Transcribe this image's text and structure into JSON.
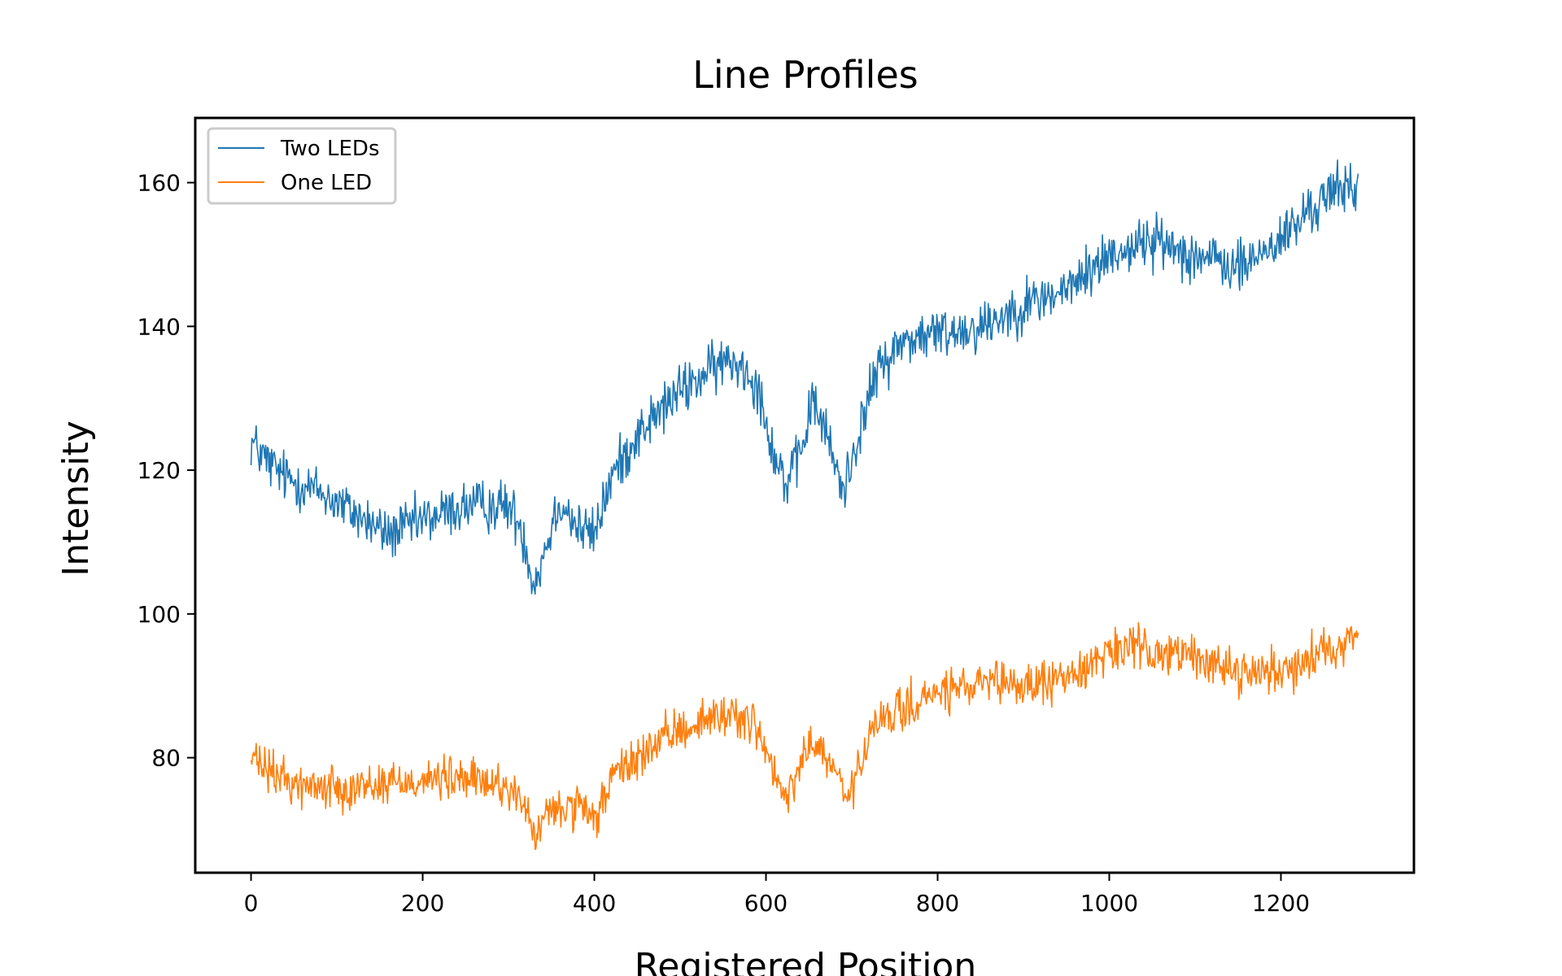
{
  "chart_data": {
    "type": "line",
    "title": "Line Profiles",
    "xlabel": "Registered Position",
    "ylabel": "Intensity",
    "xlim": [
      -65,
      1355
    ],
    "ylim": [
      64,
      169
    ],
    "xticks": [
      0,
      200,
      400,
      600,
      800,
      1000,
      1200
    ],
    "yticks": [
      80,
      100,
      120,
      140,
      160
    ],
    "xtick_labels": [
      "0",
      "200",
      "400",
      "600",
      "800",
      "1000",
      "1200"
    ],
    "ytick_labels": [
      "80",
      "100",
      "120",
      "140",
      "160"
    ],
    "legend_position": "top-left",
    "series": [
      {
        "name": "Two LEDs",
        "color": "#1f77b4",
        "noise": 1.8,
        "x": [
          0,
          20,
          40,
          80,
          120,
          160,
          200,
          250,
          300,
          315,
          330,
          345,
          360,
          380,
          400,
          420,
          450,
          500,
          550,
          570,
          590,
          610,
          625,
          640,
          655,
          670,
          690,
          710,
          730,
          760,
          800,
          850,
          900,
          950,
          1000,
          1050,
          1100,
          1150,
          1200,
          1250,
          1290
        ],
        "values": [
          124,
          121,
          119,
          117,
          114,
          111,
          113,
          115,
          115,
          112,
          104,
          110,
          116,
          112,
          111,
          119,
          125,
          131,
          135,
          135,
          132,
          122,
          118,
          122,
          130,
          125,
          117,
          126,
          134,
          138,
          139,
          140,
          143,
          145,
          150,
          152,
          150,
          148,
          152,
          158,
          160
        ]
      },
      {
        "name": "One LED",
        "color": "#ff7f0e",
        "noise": 1.5,
        "x": [
          0,
          20,
          60,
          120,
          200,
          250,
          300,
          315,
          330,
          345,
          360,
          380,
          400,
          420,
          450,
          500,
          550,
          570,
          590,
          605,
          620,
          635,
          650,
          665,
          680,
          695,
          710,
          730,
          800,
          850,
          900,
          950,
          1000,
          1050,
          1100,
          1150,
          1200,
          1250,
          1290
        ],
        "values": [
          80,
          78,
          76,
          76,
          77,
          77,
          76,
          74,
          69,
          72,
          73,
          73,
          71,
          77,
          80,
          84,
          86,
          86,
          84,
          79,
          74,
          77,
          82,
          81,
          78,
          74,
          79,
          85,
          89,
          90,
          90,
          91,
          95,
          95,
          94,
          92,
          92,
          95,
          97
        ]
      }
    ]
  }
}
